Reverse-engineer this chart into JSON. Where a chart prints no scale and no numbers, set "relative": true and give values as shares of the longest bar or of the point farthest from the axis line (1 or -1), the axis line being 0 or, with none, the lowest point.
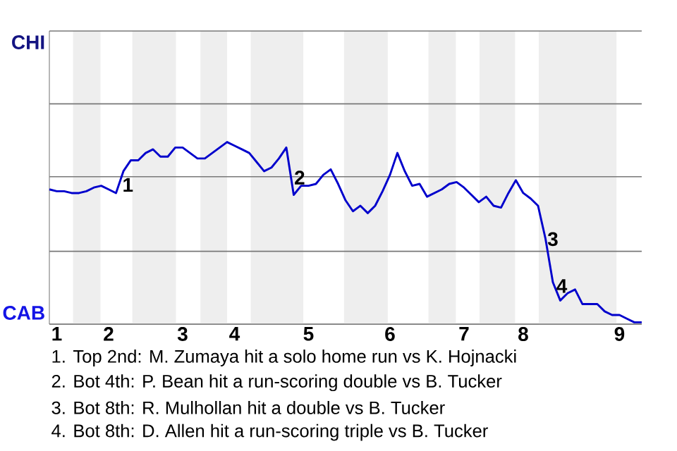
{
  "chart_data": {
    "type": "line",
    "relative": true,
    "categories": [
      null,
      "1",
      null,
      null,
      null,
      null,
      null,
      null,
      "2",
      null,
      null,
      null,
      null,
      null,
      null,
      null,
      null,
      null,
      "3",
      null,
      null,
      null,
      null,
      null,
      null,
      "4",
      null,
      null,
      null,
      null,
      null,
      null,
      null,
      null,
      null,
      "5",
      null,
      null,
      null,
      null,
      null,
      null,
      null,
      null,
      null,
      null,
      "6",
      null,
      null,
      null,
      null,
      null,
      null,
      null,
      null,
      null,
      "7",
      null,
      null,
      null,
      null,
      null,
      null,
      null,
      "8",
      null,
      null,
      null,
      null,
      null,
      null,
      null,
      null,
      null,
      null,
      null,
      null,
      "9",
      null,
      null,
      null
    ],
    "series": [
      {
        "color": "#0000cc",
        "values": [
          0.74,
          0.73,
          0.73,
          0.72,
          0.72,
          0.73,
          0.75,
          0.76,
          0.74,
          0.72,
          0.84,
          0.9,
          0.9,
          0.94,
          0.96,
          0.92,
          0.92,
          0.97,
          0.97,
          0.94,
          0.91,
          0.91,
          0.94,
          0.97,
          1,
          0.98,
          0.96,
          0.94,
          0.89,
          0.84,
          0.86,
          0.91,
          0.97,
          0.71,
          0.76,
          0.76,
          0.77,
          0.82,
          0.85,
          0.77,
          0.68,
          0.62,
          0.65,
          0.61,
          0.65,
          0.73,
          0.82,
          0.94,
          0.84,
          0.76,
          0.77,
          0.7,
          0.72,
          0.74,
          0.77,
          0.78,
          0.75,
          0.71,
          0.67,
          0.7,
          0.65,
          0.64,
          0.72,
          0.79,
          0.72,
          0.69,
          0.65,
          0.47,
          0.23,
          0.13,
          0.17,
          0.19,
          0.11,
          0.11,
          0.11,
          0.07,
          0.05,
          0.05,
          0.03,
          0.01,
          0.01
        ]
      }
    ],
    "ref_lines": [
      {
        "axis": "y",
        "value": 0,
        "label": "CAB",
        "color": "#787878"
      },
      {
        "axis": "y",
        "value": 0.4,
        "color": "#787878"
      },
      {
        "axis": "y",
        "value": 0.81,
        "color": "#787878"
      },
      {
        "axis": "y",
        "value": 1.21,
        "color": "#787878"
      },
      {
        "axis": "y",
        "value": 1.61,
        "label": "CHI",
        "color": "#787878"
      }
    ],
    "annotations": [
      "1",
      "2",
      "3",
      "4",
      "1. Top 2nd: M. Zumaya hit a solo home run vs K. Hojnacki",
      "2. Bot 4th: P. Bean hit a run-scoring double vs B. Tucker",
      "3. Bot 8th: R. Mulhollan hit a double vs B. Tucker",
      "4. Bot 8th: D. Allen hit a run-scoring triple vs B. Tucker"
    ]
  }
}
